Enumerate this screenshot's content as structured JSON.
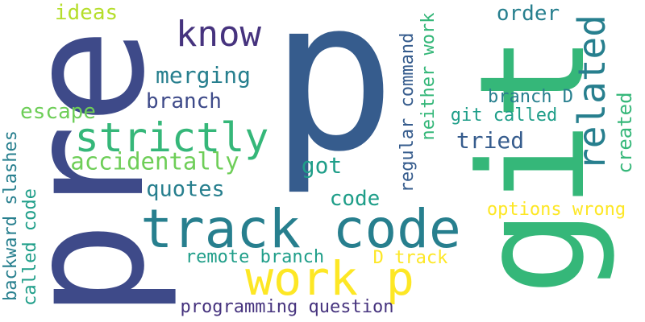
{
  "words": {
    "p": "p",
    "pre": "pre",
    "git": "git",
    "track_code": "track code",
    "work_p": "work p",
    "strictly": "strictly",
    "know": "know",
    "related": "related",
    "accidentally": "accidentally",
    "merging": "merging",
    "branch": "branch",
    "quotes": "quotes",
    "ideas": "ideas",
    "escape": "escape",
    "got": "got",
    "code": "code",
    "order": "order",
    "tried": "tried",
    "git_called": "git called",
    "branch_d": "branch D",
    "created": "created",
    "options_wrong": "options wrong",
    "remote_branch": "remote branch",
    "d_track": "D track",
    "programming_question": "programming question",
    "regular_command": "regular command",
    "neither_work": "neither work",
    "backward_slashes": "backward slashes",
    "called_code": "called code"
  },
  "colors": {
    "background": "#ffffff",
    "dark_purple": "#46337e",
    "navy_blue": "#365c8d",
    "slate_blue": "#3e4a89",
    "steel_blue": "#31688e",
    "teal_blue": "#277f8e",
    "teal": "#1f9e89",
    "green": "#35b779",
    "light_green": "#6ece58",
    "yellow_green": "#b5de2b",
    "yellow": "#fde725"
  }
}
